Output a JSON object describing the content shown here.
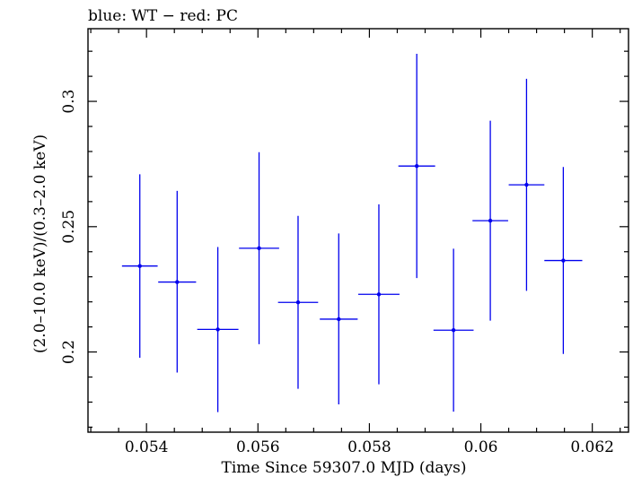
{
  "chart_data": {
    "type": "scatter",
    "title": "blue: WT − red: PC",
    "xlabel": "Time Since 59307.0 MJD (days)",
    "ylabel": "(2.0–10.0 keV)/(0.3–2.0 keV)",
    "xlim": [
      0.05295,
      0.06265
    ],
    "ylim": [
      0.168,
      0.329
    ],
    "x_ticks": [
      0.054,
      0.056,
      0.058,
      0.06,
      0.062
    ],
    "x_tick_labels": [
      "0.054",
      "0.056",
      "0.058",
      "0.06",
      "0.062"
    ],
    "y_ticks": [
      0.2,
      0.25,
      0.3
    ],
    "y_tick_labels": [
      "0.2",
      "0.25",
      "0.3"
    ],
    "grid": false,
    "series": [
      {
        "color": "#0000ee",
        "points": [
          {
            "x": 0.05388,
            "xerr": 0.00032,
            "y": 0.2343,
            "ylo": 0.1977,
            "yhi": 0.2709
          },
          {
            "x": 0.05455,
            "xerr": 0.00034,
            "y": 0.2279,
            "ylo": 0.1918,
            "yhi": 0.2643
          },
          {
            "x": 0.05528,
            "xerr": 0.00037,
            "y": 0.209,
            "ylo": 0.176,
            "yhi": 0.2419
          },
          {
            "x": 0.05602,
            "xerr": 0.00036,
            "y": 0.2414,
            "ylo": 0.2031,
            "yhi": 0.2797
          },
          {
            "x": 0.05672,
            "xerr": 0.00036,
            "y": 0.2198,
            "ylo": 0.1853,
            "yhi": 0.2543
          },
          {
            "x": 0.05745,
            "xerr": 0.00034,
            "y": 0.2131,
            "ylo": 0.1791,
            "yhi": 0.2473
          },
          {
            "x": 0.05817,
            "xerr": 0.00037,
            "y": 0.223,
            "ylo": 0.1871,
            "yhi": 0.2589
          },
          {
            "x": 0.05885,
            "xerr": 0.00033,
            "y": 0.2742,
            "ylo": 0.2295,
            "yhi": 0.319
          },
          {
            "x": 0.05951,
            "xerr": 0.00036,
            "y": 0.2087,
            "ylo": 0.1762,
            "yhi": 0.2412
          },
          {
            "x": 0.06017,
            "xerr": 0.00032,
            "y": 0.2524,
            "ylo": 0.2125,
            "yhi": 0.2923
          },
          {
            "x": 0.06082,
            "xerr": 0.00032,
            "y": 0.2667,
            "ylo": 0.2244,
            "yhi": 0.309
          },
          {
            "x": 0.06148,
            "xerr": 0.00034,
            "y": 0.2365,
            "ylo": 0.1992,
            "yhi": 0.2738
          }
        ]
      }
    ]
  }
}
